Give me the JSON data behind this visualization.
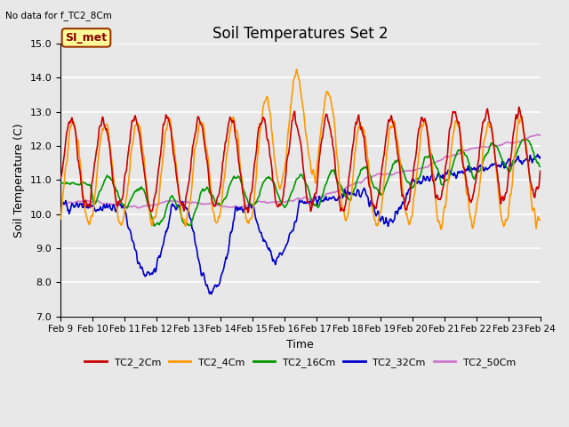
{
  "title": "Soil Temperatures Set 2",
  "subtitle": "No data for f_TC2_8Cm",
  "xlabel": "Time",
  "ylabel": "Soil Temperature (C)",
  "ylim": [
    7.0,
    15.0
  ],
  "yticks": [
    7.0,
    8.0,
    9.0,
    10.0,
    11.0,
    12.0,
    13.0,
    14.0,
    15.0
  ],
  "xtick_labels": [
    "Feb 9",
    "Feb 10",
    "Feb 11",
    "Feb 12",
    "Feb 13",
    "Feb 14",
    "Feb 15",
    "Feb 16",
    "Feb 17",
    "Feb 18",
    "Feb 19",
    "Feb 20",
    "Feb 21",
    "Feb 22",
    "Feb 23",
    "Feb 24"
  ],
  "legend_labels": [
    "TC2_2Cm",
    "TC2_4Cm",
    "TC2_16Cm",
    "TC2_32Cm",
    "TC2_50Cm"
  ],
  "legend_colors": [
    "#cc0000",
    "#ff9900",
    "#009900",
    "#0000cc",
    "#cc77cc"
  ],
  "background_color": "#e8e8e8",
  "plot_bg_color": "#e8e8e8",
  "annotation_text": "SI_met",
  "annotation_box_color": "#ffff99",
  "annotation_box_edge": "#993300",
  "grid_color": "#ffffff",
  "linewidth": 1.2,
  "title_fontsize": 12,
  "axis_fontsize": 9,
  "tick_fontsize": 8
}
